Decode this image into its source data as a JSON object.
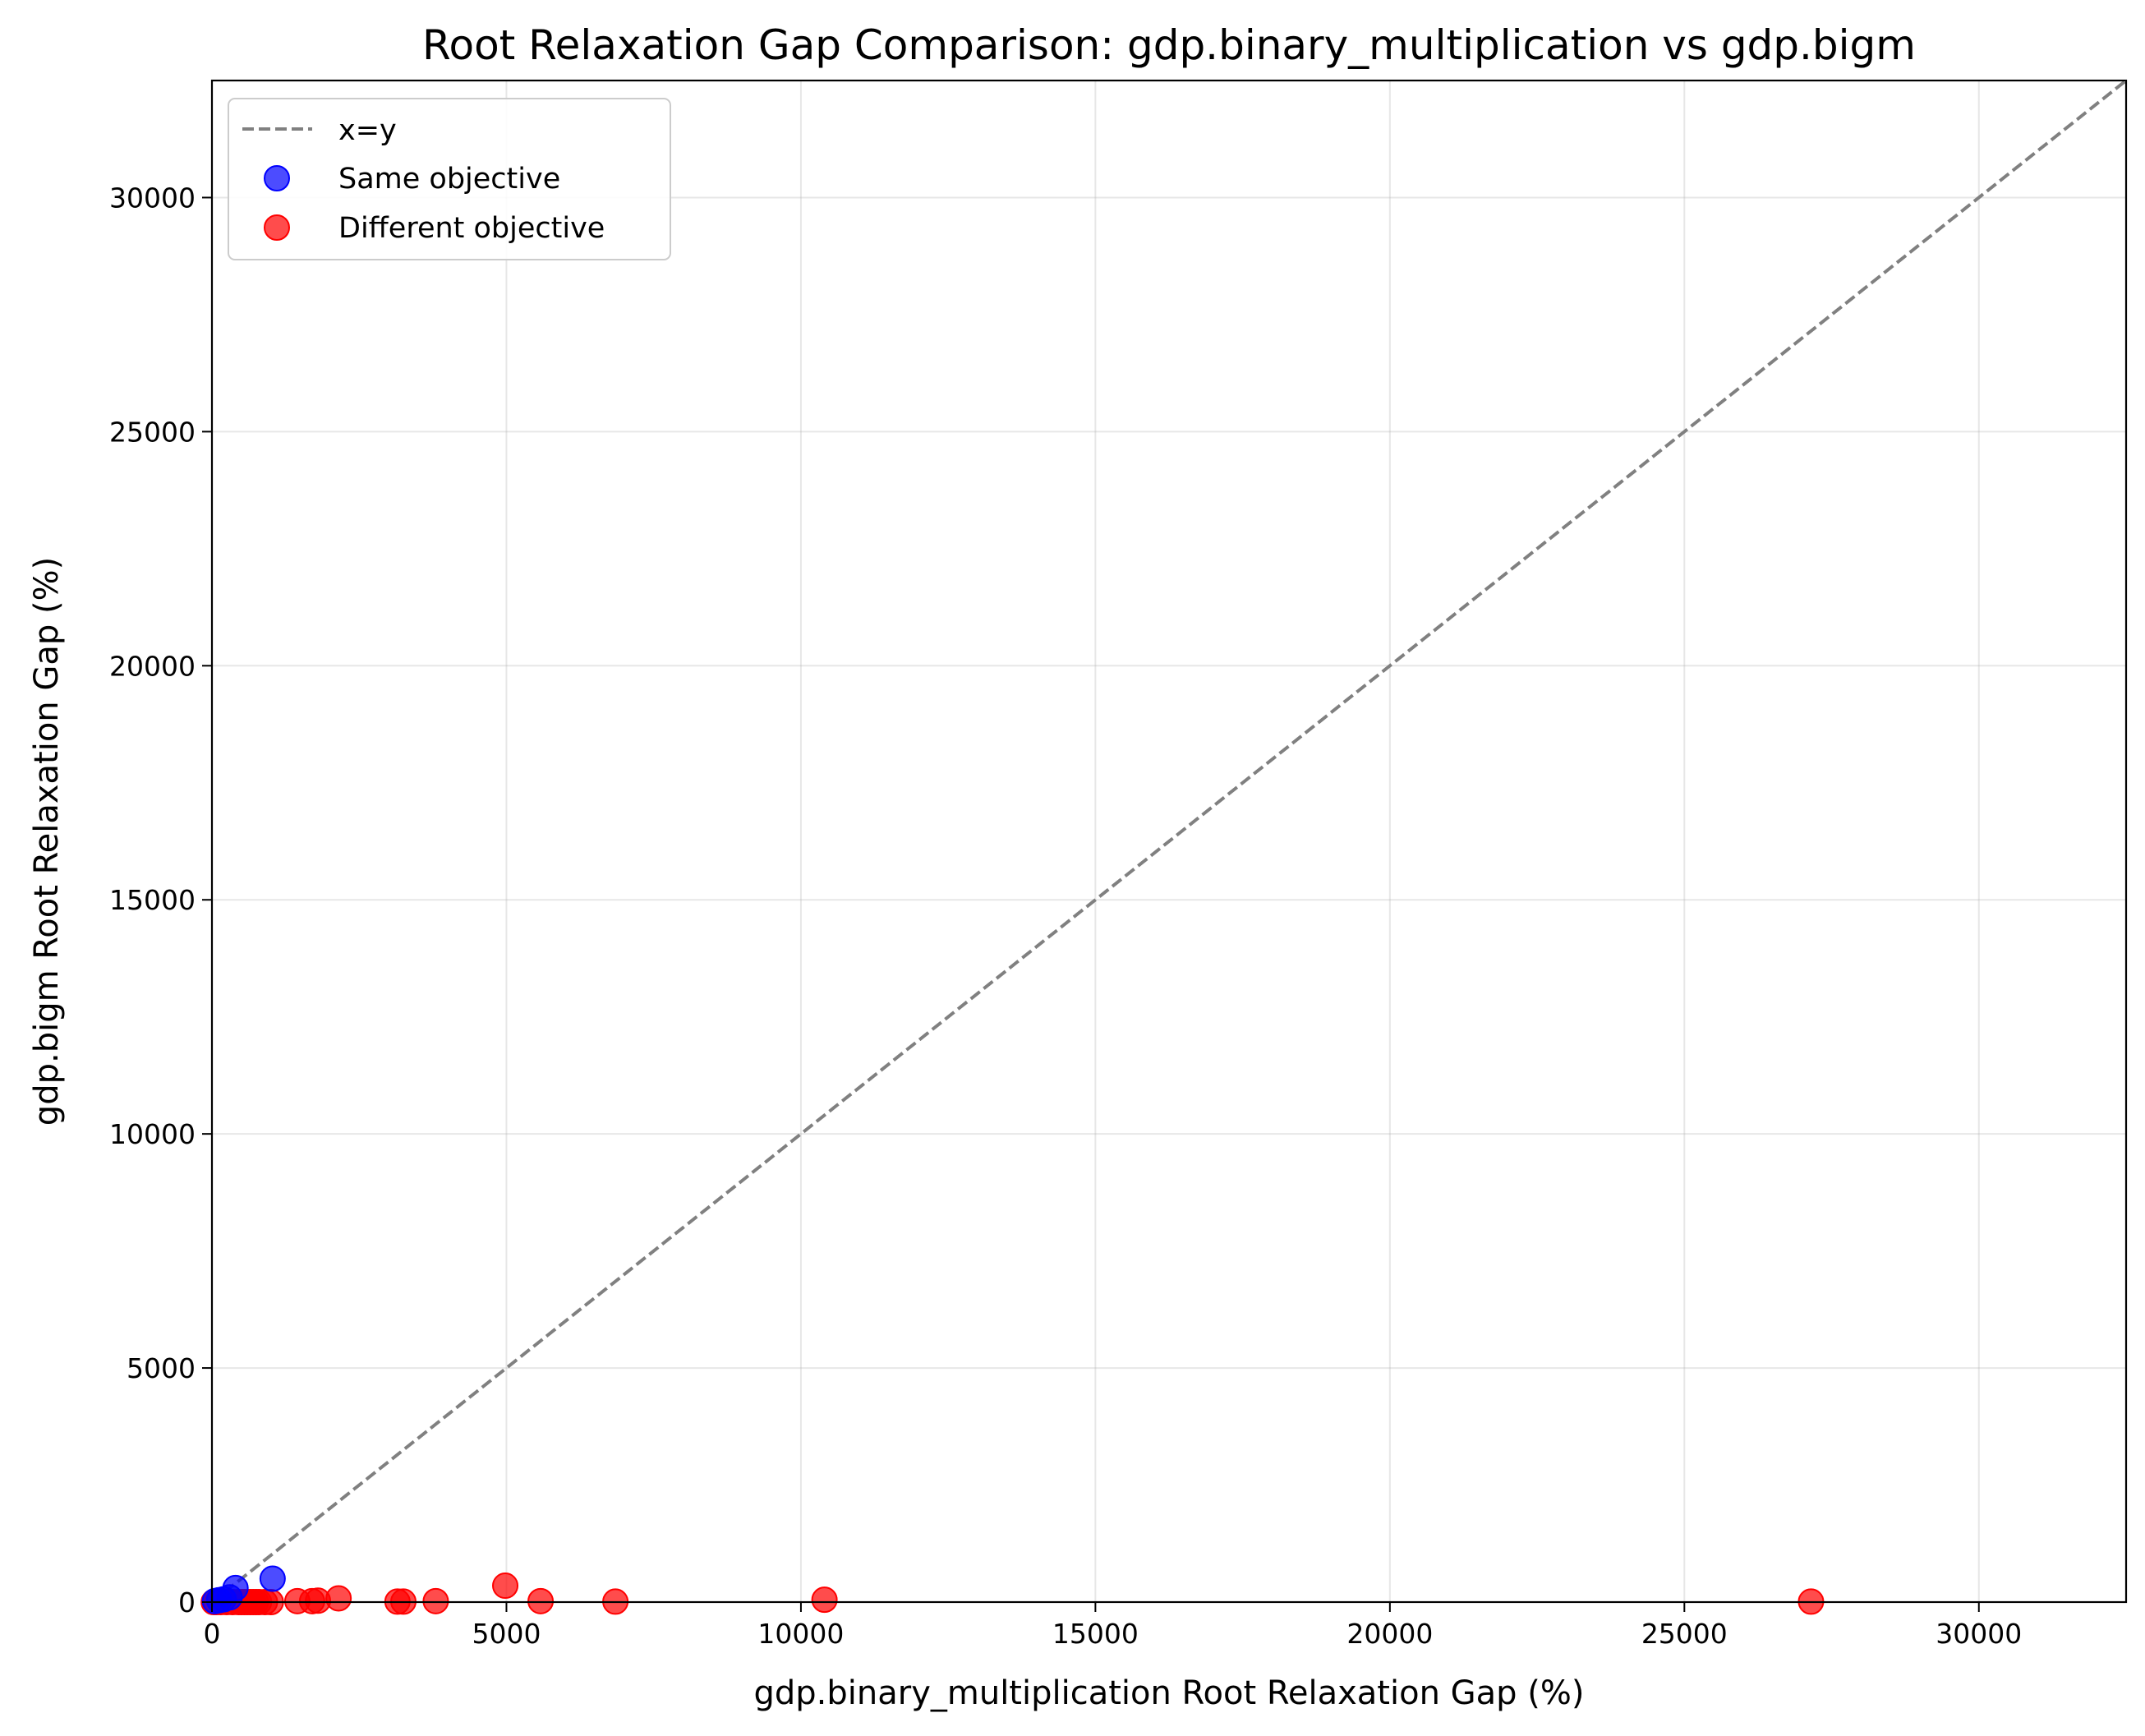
{
  "chart_data": {
    "type": "scatter",
    "title": "Root Relaxation Gap Comparison: gdp.binary_multiplication vs gdp.bigm",
    "xlabel": "gdp.binary_multiplication Root Relaxation Gap (%)",
    "ylabel": "gdp.bigm Root Relaxation Gap (%)",
    "xlim": [
      0,
      32500
    ],
    "ylim": [
      0,
      32500
    ],
    "xticks": [
      "0",
      "5000",
      "10000",
      "15000",
      "20000",
      "25000",
      "30000"
    ],
    "yticks": [
      "0",
      "5000",
      "10000",
      "15000",
      "20000",
      "25000",
      "30000"
    ],
    "grid": true,
    "legend": {
      "position": "top-left",
      "entries": [
        "x=y",
        "Same objective",
        "Different objective"
      ]
    },
    "reference_line": {
      "name": "x=y",
      "color": "#808080",
      "style": "dashed"
    },
    "series": [
      {
        "name": "Same objective",
        "color": "#0000ff",
        "x": [
          50,
          120,
          200,
          300,
          400,
          1030
        ],
        "y": [
          20,
          40,
          60,
          100,
          300,
          500
        ]
      },
      {
        "name": "Different objective",
        "color": "#ff0000",
        "x": [
          30,
          80,
          150,
          250,
          350,
          450,
          500,
          550,
          600,
          650,
          700,
          750,
          800,
          900,
          1000,
          1450,
          1700,
          1800,
          2150,
          3150,
          3250,
          3800,
          4980,
          5580,
          6850,
          10400,
          27150
        ],
        "y": [
          0,
          0,
          0,
          0,
          0,
          0,
          0,
          0,
          0,
          0,
          0,
          0,
          0,
          0,
          0,
          20,
          20,
          30,
          80,
          10,
          10,
          20,
          350,
          20,
          10,
          50,
          10
        ]
      }
    ]
  }
}
